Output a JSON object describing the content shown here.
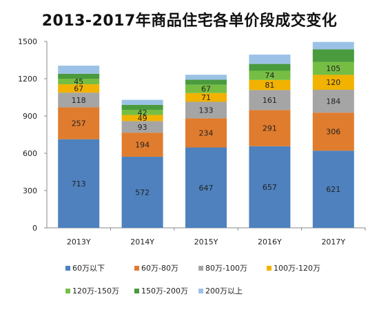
{
  "chart_data": {
    "type": "bar",
    "stacked": true,
    "title": "2013-2017年商品住宅各单价段成交变化",
    "categories": [
      "2013Y",
      "2014Y",
      "2015Y",
      "2016Y",
      "2017Y"
    ],
    "ylim": [
      0,
      1500
    ],
    "yticks": [
      "0",
      "300",
      "600",
      "900",
      "1200",
      "1500"
    ],
    "grid": false,
    "legend_position": "bottom",
    "series": [
      {
        "name": "60万以下",
        "color": "#4E81BD",
        "values": [
          713,
          572,
          647,
          657,
          621
        ]
      },
      {
        "name": "60万-80万",
        "color": "#E07C2E",
        "values": [
          257,
          194,
          234,
          291,
          306
        ]
      },
      {
        "name": "80万-100万",
        "color": "#A5A5A5",
        "values": [
          118,
          93,
          133,
          161,
          184
        ]
      },
      {
        "name": "100万-120万",
        "color": "#F2B200",
        "values": [
          67,
          49,
          71,
          81,
          120
        ]
      },
      {
        "name": "120万-150万",
        "color": "#76BE43",
        "values": [
          45,
          42,
          67,
          74,
          105
        ]
      },
      {
        "name": "150万-200万",
        "color": "#4A9A3E",
        "values": [
          40,
          40,
          40,
          55,
          100
        ]
      },
      {
        "name": "200万以上",
        "color": "#9BC2E6",
        "values": [
          65,
          40,
          40,
          75,
          60
        ]
      }
    ],
    "labeled_series": [
      0,
      1,
      2,
      3,
      4
    ]
  }
}
